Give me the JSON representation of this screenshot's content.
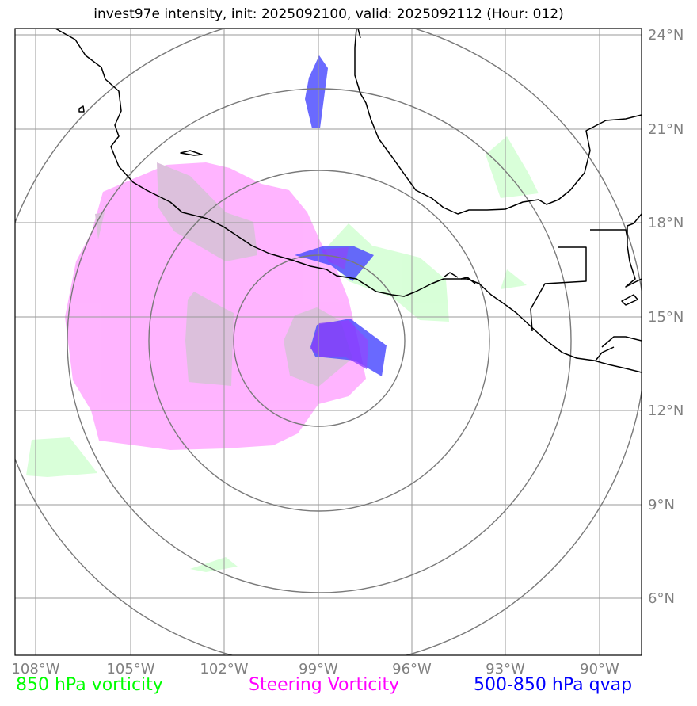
{
  "title": "invest97e intensity, init: 2025092100, valid: 2025092112 (Hour: 012)",
  "map": {
    "lon_labels": [
      "108°W",
      "105°W",
      "102°W",
      "99°W",
      "96°W",
      "93°W",
      "90°W"
    ],
    "lat_labels": [
      "24°N",
      "21°N",
      "18°N",
      "15°N",
      "12°N",
      "9°N",
      "6°N"
    ],
    "center": {
      "lon": -99.0,
      "lat": 13.9
    },
    "range_rings_deg": [
      3,
      6,
      9,
      12
    ]
  },
  "legend": {
    "vort850": {
      "label": "850 hPa vorticity",
      "color": "#00ff00"
    },
    "steering": {
      "label": "Steering Vorticity",
      "color": "#ff00ff"
    },
    "qvap": {
      "label": "500-850 hPa qvap",
      "color": "#0000ff"
    }
  },
  "colors": {
    "vort850_fill": "#ccffcc",
    "steering_fill": "#ffa8ff",
    "qvap_fill": "#5050ff",
    "grid": "#9a9a9a",
    "ring": "#7a7a7a",
    "coast": "#000000"
  }
}
